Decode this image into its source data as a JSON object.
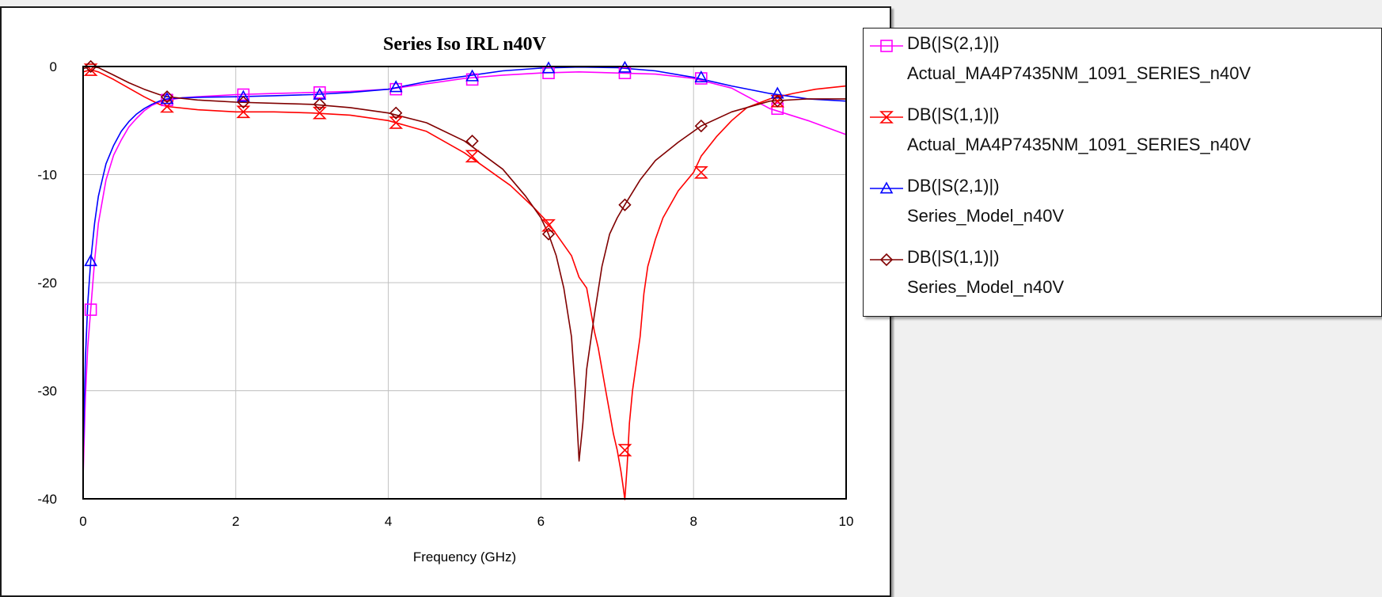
{
  "chart_data": {
    "type": "line",
    "title": "Series Iso IRL n40V",
    "xlabel": "Frequency (GHz)",
    "ylabel": "",
    "xlim": [
      0,
      10
    ],
    "ylim": [
      -40,
      0
    ],
    "xticks": [
      "0",
      "2",
      "4",
      "6",
      "8",
      "10"
    ],
    "yticks": [
      "0",
      "-10",
      "-20",
      "-30",
      "-40"
    ],
    "grid": true,
    "legend_position": "right",
    "series": [
      {
        "name": "DB(|S(2,1)|)",
        "subname": "Actual_MA4P7435NM_1091_SERIES_n40V",
        "color": "#ff00ff",
        "marker": "square",
        "x": [
          0.0,
          0.03,
          0.06,
          0.1,
          0.15,
          0.2,
          0.3,
          0.4,
          0.5,
          0.6,
          0.7,
          0.8,
          0.9,
          1.0,
          1.1,
          1.3,
          1.5,
          2.0,
          2.5,
          3.0,
          3.5,
          4.0,
          4.5,
          5.0,
          5.5,
          6.0,
          6.5,
          7.0,
          7.5,
          8.0,
          8.5,
          9.0,
          9.5,
          10.0
        ],
        "y": [
          -38.0,
          -30.5,
          -26.0,
          -22.5,
          -18.0,
          -14.5,
          -10.5,
          -8.2,
          -6.8,
          -5.6,
          -4.8,
          -4.1,
          -3.6,
          -3.3,
          -3.1,
          -2.9,
          -2.8,
          -2.6,
          -2.5,
          -2.4,
          -2.3,
          -2.1,
          -1.6,
          -1.1,
          -0.8,
          -0.6,
          -0.5,
          -0.6,
          -0.7,
          -1.1,
          -2.0,
          -3.9,
          -5.0,
          -6.3
        ],
        "marker_x": [
          0.1,
          1.1,
          2.1,
          3.1,
          4.1,
          5.1,
          6.1,
          7.1,
          8.1,
          9.1
        ],
        "marker_y": [
          -22.5,
          -3.1,
          -2.6,
          -2.4,
          -2.1,
          -1.2,
          -0.6,
          -0.6,
          -1.1,
          -3.9
        ]
      },
      {
        "name": "DB(|S(1,1)|)",
        "subname": "Actual_MA4P7435NM_1091_SERIES_n40V",
        "color": "#ff0000",
        "marker": "hourglass",
        "x": [
          0.0,
          0.1,
          0.2,
          0.4,
          0.6,
          0.8,
          1.0,
          1.1,
          1.5,
          2.0,
          2.5,
          3.0,
          3.5,
          4.0,
          4.5,
          5.0,
          5.3,
          5.6,
          5.9,
          6.1,
          6.3,
          6.4,
          6.5,
          6.6,
          6.65,
          6.7,
          6.75,
          6.8,
          6.85,
          6.9,
          6.95,
          7.0,
          7.05,
          7.08,
          7.1,
          7.13,
          7.16,
          7.2,
          7.25,
          7.3,
          7.35,
          7.4,
          7.5,
          7.6,
          7.8,
          8.0,
          8.1,
          8.3,
          8.5,
          8.7,
          9.0,
          9.3,
          9.6,
          10.0
        ],
        "y": [
          -0.5,
          -0.3,
          -0.5,
          -1.2,
          -2.0,
          -2.8,
          -3.5,
          -3.7,
          -4.0,
          -4.2,
          -4.2,
          -4.3,
          -4.5,
          -5.0,
          -6.0,
          -8.0,
          -9.5,
          -11.0,
          -13.0,
          -14.5,
          -16.5,
          -17.5,
          -19.5,
          -20.5,
          -22.5,
          -24.5,
          -26.0,
          -28.0,
          -30.0,
          -32.0,
          -34.0,
          -35.5,
          -37.5,
          -39.0,
          -40.5,
          -37.0,
          -33.0,
          -30.0,
          -27.5,
          -25.0,
          -21.0,
          -18.5,
          -16.0,
          -14.0,
          -11.5,
          -9.8,
          -8.3,
          -6.5,
          -5.0,
          -3.8,
          -3.0,
          -2.5,
          -2.1,
          -1.8
        ],
        "marker_x": [
          0.1,
          1.1,
          2.1,
          3.1,
          4.1,
          5.1,
          6.1,
          7.1,
          8.1,
          9.1
        ],
        "marker_y": [
          -0.3,
          -3.7,
          -4.2,
          -4.3,
          -5.2,
          -8.3,
          -14.7,
          -35.5,
          -9.8,
          -3.2
        ]
      },
      {
        "name": "DB(|S(2,1)|)",
        "subname": "Series_Model_n40V",
        "color": "#0000ff",
        "marker": "triangle",
        "x": [
          0.0,
          0.03,
          0.06,
          0.1,
          0.15,
          0.2,
          0.3,
          0.4,
          0.5,
          0.6,
          0.7,
          0.8,
          0.9,
          1.0,
          1.1,
          1.3,
          1.5,
          2.0,
          2.5,
          3.0,
          3.5,
          4.0,
          4.5,
          5.0,
          5.5,
          6.0,
          6.5,
          7.0,
          7.5,
          8.0,
          8.5,
          9.0,
          9.5,
          10.0
        ],
        "y": [
          -36.0,
          -27.0,
          -22.0,
          -18.0,
          -14.5,
          -12.0,
          -9.0,
          -7.3,
          -6.0,
          -5.1,
          -4.4,
          -3.9,
          -3.5,
          -3.2,
          -3.0,
          -2.9,
          -2.85,
          -2.8,
          -2.7,
          -2.6,
          -2.4,
          -2.1,
          -1.4,
          -0.9,
          -0.4,
          -0.15,
          -0.05,
          -0.1,
          -0.4,
          -1.0,
          -1.8,
          -2.5,
          -3.0,
          -3.2
        ],
        "marker_x": [
          0.1,
          1.1,
          2.1,
          3.1,
          4.1,
          5.1,
          6.1,
          7.1,
          8.1,
          9.1
        ],
        "marker_y": [
          -18.0,
          -3.0,
          -2.8,
          -2.6,
          -1.9,
          -0.9,
          -0.15,
          -0.1,
          -1.0,
          -2.5
        ]
      },
      {
        "name": "DB(|S(1,1)|)",
        "subname": "Series_Model_n40V",
        "color": "#800000",
        "marker": "diamond",
        "x": [
          0.0,
          0.1,
          0.2,
          0.4,
          0.6,
          0.8,
          1.0,
          1.1,
          1.5,
          2.0,
          2.5,
          3.0,
          3.5,
          4.0,
          4.5,
          5.0,
          5.5,
          5.8,
          6.0,
          6.1,
          6.2,
          6.3,
          6.4,
          6.45,
          6.5,
          6.55,
          6.6,
          6.7,
          6.8,
          6.9,
          7.0,
          7.1,
          7.3,
          7.5,
          7.8,
          8.1,
          8.5,
          9.0,
          9.5,
          10.0
        ],
        "y": [
          -0.2,
          0.0,
          -0.1,
          -0.8,
          -1.5,
          -2.1,
          -2.6,
          -2.8,
          -3.1,
          -3.3,
          -3.4,
          -3.5,
          -3.8,
          -4.3,
          -5.2,
          -6.9,
          -9.5,
          -12.0,
          -14.0,
          -15.5,
          -17.5,
          -20.5,
          -25.0,
          -30.0,
          -36.5,
          -33.0,
          -28.0,
          -23.0,
          -18.5,
          -15.5,
          -14.0,
          -12.8,
          -10.5,
          -8.7,
          -7.0,
          -5.5,
          -4.2,
          -3.2,
          -3.0,
          -3.0
        ],
        "marker_x": [
          0.1,
          1.1,
          2.1,
          3.1,
          4.1,
          5.1,
          6.1,
          7.1,
          8.1,
          9.1
        ],
        "marker_y": [
          0.0,
          -2.8,
          -3.3,
          -3.5,
          -4.3,
          -6.9,
          -15.5,
          -12.8,
          -5.5,
          -3.2
        ]
      }
    ]
  }
}
